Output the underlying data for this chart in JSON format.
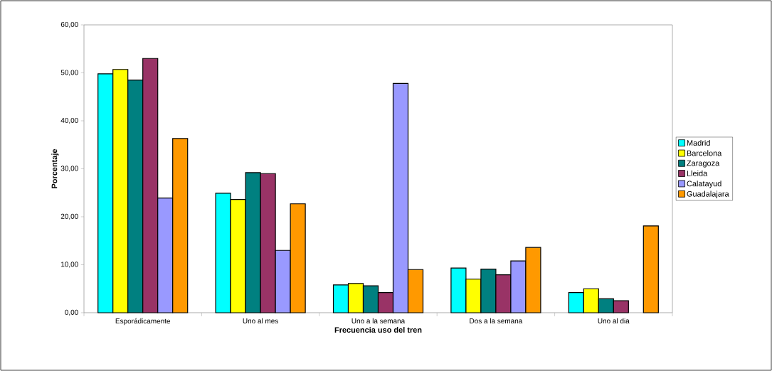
{
  "chart_data": {
    "type": "bar",
    "xlabel": "Frecuencia uso del tren",
    "ylabel": "Porcentaje",
    "categories": [
      "Esporádicamente",
      "Uno al mes",
      "Uno a la semana",
      "Dos a la semana",
      "Uno al dia"
    ],
    "series": [
      {
        "name": "Madrid",
        "color": "#00ffff",
        "values": [
          49.8,
          24.9,
          5.8,
          9.3,
          4.2
        ]
      },
      {
        "name": "Barcelona",
        "color": "#ffff00",
        "values": [
          50.7,
          23.6,
          6.1,
          7.0,
          5.0
        ]
      },
      {
        "name": "Zaragoza",
        "color": "#008080",
        "values": [
          48.5,
          29.2,
          5.6,
          9.1,
          2.9
        ]
      },
      {
        "name": "Lleida",
        "color": "#993366",
        "values": [
          53.0,
          29.0,
          4.2,
          7.9,
          2.5
        ]
      },
      {
        "name": "Calatayud",
        "color": "#9999ff",
        "values": [
          23.9,
          13.0,
          47.8,
          10.8,
          null
        ]
      },
      {
        "name": "Guadalajara",
        "color": "#ff9900",
        "values": [
          36.3,
          22.7,
          9.0,
          13.6,
          18.1
        ]
      }
    ],
    "ylim": [
      0,
      60
    ],
    "yticks": [
      {
        "value": 0,
        "label": "0,00"
      },
      {
        "value": 10,
        "label": "10,00"
      },
      {
        "value": 20,
        "label": "20,00"
      },
      {
        "value": 30,
        "label": "30,00"
      },
      {
        "value": 40,
        "label": "40,00"
      },
      {
        "value": 50,
        "label": "50,00"
      },
      {
        "value": 60,
        "label": "60,00"
      }
    ],
    "grid": false,
    "legend": "right"
  }
}
